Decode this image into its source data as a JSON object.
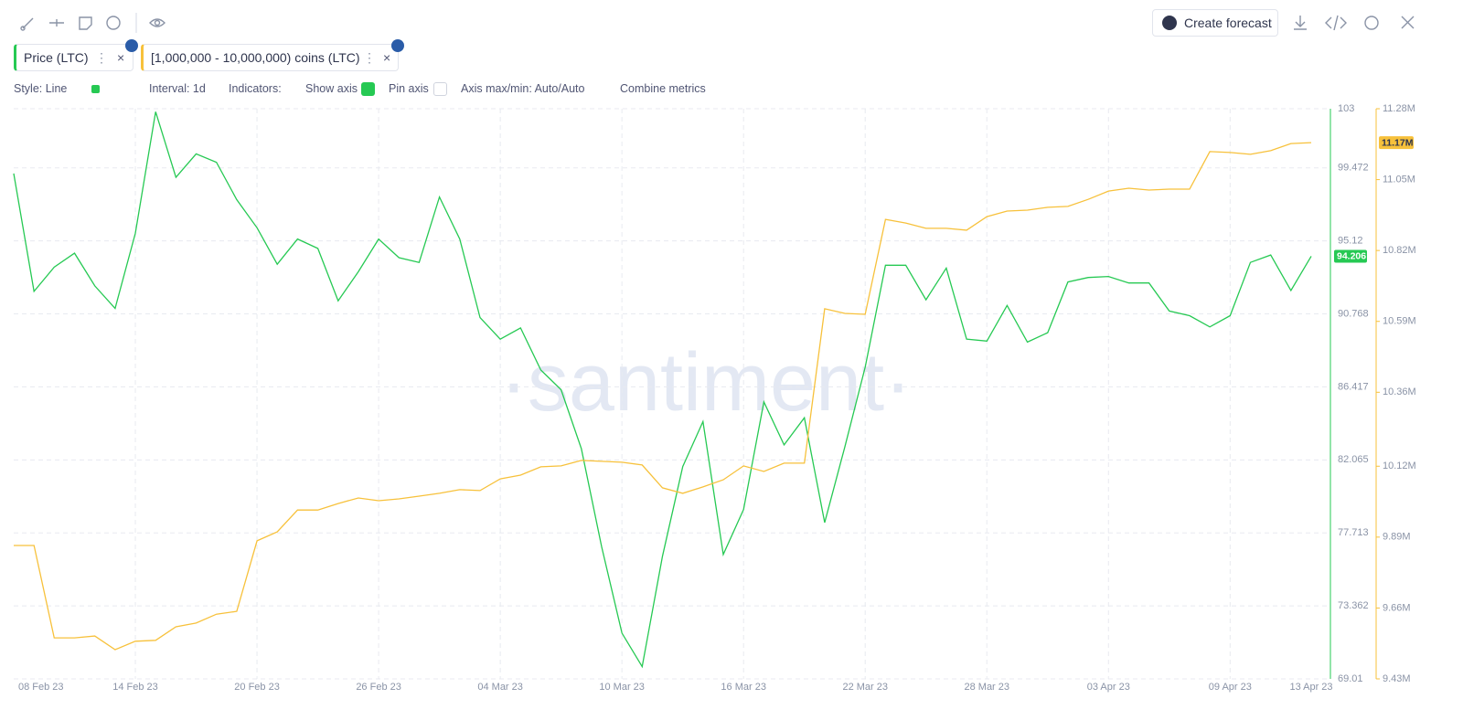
{
  "toolbar": {
    "create_forecast": "Create forecast"
  },
  "settings": {
    "style": "Style: Line",
    "interval": "Interval: 1d",
    "indicators": "Indicators:",
    "show_axis": "Show axis",
    "pin_axis": "Pin axis",
    "axis_minmax": "Axis max/min: Auto/Auto",
    "combine": "Combine metrics"
  },
  "watermark": "·santiment·",
  "chart_data": {
    "type": "line",
    "categories": [
      "08 Feb 23",
      null,
      null,
      null,
      null,
      null,
      "14 Feb 23",
      null,
      null,
      null,
      null,
      null,
      "20 Feb 23",
      null,
      null,
      null,
      null,
      null,
      "26 Feb 23",
      null,
      null,
      null,
      null,
      null,
      "04 Mar 23",
      null,
      null,
      null,
      null,
      null,
      "10 Mar 23",
      null,
      null,
      null,
      null,
      null,
      "16 Mar 23",
      null,
      null,
      null,
      null,
      null,
      "22 Mar 23",
      null,
      null,
      null,
      null,
      null,
      "28 Mar 23",
      null,
      null,
      null,
      null,
      null,
      "03 Apr 23",
      null,
      null,
      null,
      null,
      null,
      "09 Apr 23",
      null,
      null,
      null,
      "13 Apr 23"
    ],
    "series": [
      {
        "name": "Price (LTC)",
        "color": "#26c953",
        "values": [
          99.14,
          92.11,
          93.56,
          94.39,
          92.44,
          91.1,
          95.57,
          102.82,
          98.91,
          100.31,
          99.81,
          97.58,
          95.9,
          93.73,
          95.23,
          94.67,
          91.55,
          93.28,
          95.23,
          94.12,
          93.84,
          97.74,
          95.23,
          90.55,
          89.26,
          89.93,
          87.42,
          86.25,
          82.73,
          76.88,
          71.74,
          69.74,
          76.32,
          81.67,
          84.35,
          76.43,
          79.11,
          85.52,
          82.96,
          84.58,
          78.33,
          82.85,
          87.59,
          93.67,
          93.67,
          91.61,
          93.5,
          89.26,
          89.15,
          91.27,
          89.09,
          89.65,
          92.67,
          92.94,
          93.0,
          92.61,
          92.61,
          90.94,
          90.66,
          89.99,
          90.66,
          93.84,
          94.28,
          92.16,
          94.206
        ]
      },
      {
        "name": "[1,000,000 - 10,000,000) coins (LTC)",
        "color": "#f7c13b",
        "axis": "y2",
        "values": [
          9863000,
          9863000,
          9563000,
          9563000,
          9569000,
          9525000,
          9552000,
          9555000,
          9599000,
          9611000,
          9640000,
          9649000,
          9878000,
          9907000,
          9978000,
          9978000,
          9999000,
          10017000,
          10008000,
          10014000,
          10023000,
          10032000,
          10044000,
          10041000,
          10079000,
          10091000,
          10118000,
          10121000,
          10139000,
          10136000,
          10133000,
          10124000,
          10050000,
          10032000,
          10053000,
          10076000,
          10121000,
          10103000,
          10130000,
          10130000,
          10631000,
          10616000,
          10613000,
          10921000,
          10909000,
          10892000,
          10892000,
          10886000,
          10930000,
          10948000,
          10951000,
          10960000,
          10963000,
          10986000,
          11013000,
          11022000,
          11016000,
          11019000,
          11019000,
          11141000,
          11138000,
          11132000,
          11144000,
          11167000,
          11170000
        ],
        "value_labels": [
          null,
          null,
          null,
          null,
          null,
          null,
          null,
          null,
          null,
          null,
          null,
          null,
          null,
          null,
          null,
          null,
          null,
          null,
          null,
          null,
          null,
          null,
          null,
          null,
          null,
          null,
          null,
          null,
          null,
          null,
          null,
          null,
          null,
          null,
          null,
          null,
          null,
          null,
          null,
          null,
          null,
          null,
          null,
          null,
          null,
          null,
          null,
          null,
          null,
          null,
          null,
          null,
          null,
          null,
          null,
          null,
          null,
          null,
          null,
          null,
          null,
          null,
          null,
          null,
          "11.17M"
        ]
      }
    ],
    "ylim": [
      69.01,
      103
    ],
    "yticks": [
      103,
      99.472,
      95.12,
      90.768,
      86.417,
      82.065,
      77.713,
      73.362,
      69.01
    ],
    "y2lim": [
      9430000,
      11280000
    ],
    "y2ticks": [
      {
        "value": 11280000,
        "label": "11.28M"
      },
      {
        "value": 11050000,
        "label": "11.05M"
      },
      {
        "value": 10820000,
        "label": "10.82M"
      },
      {
        "value": 10590000,
        "label": "10.59M"
      },
      {
        "value": 10360000,
        "label": "10.36M"
      },
      {
        "value": 10120000,
        "label": "10.12M"
      },
      {
        "value": 9890000,
        "label": "9.89M"
      },
      {
        "value": 9660000,
        "label": "9.66M"
      },
      {
        "value": 9430000,
        "label": "9.43M"
      }
    ],
    "grid": true
  }
}
